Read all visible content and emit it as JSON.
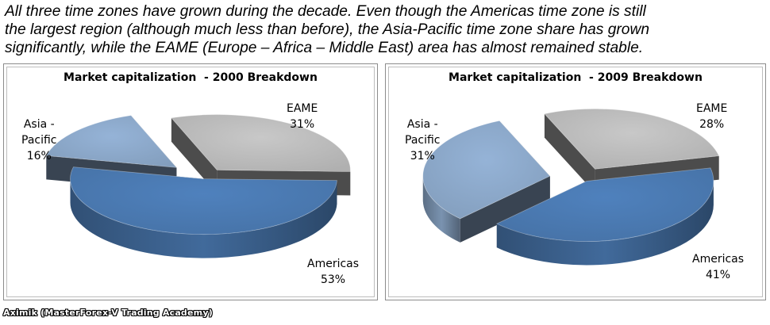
{
  "intro": {
    "line1": "All three time zones have grown during the decade. Even though the Americas time zone is still",
    "line2": "the largest region (although much less than before), the Asia-Pacific time zone share has grown",
    "line3": "significantly, while the EAME (Europe – Africa – Middle East) area has almost remained stable."
  },
  "footer": "Aximik (MasterForex-V Trading Academy)",
  "colors": {
    "eame": "#c8c8c8",
    "americas": "#4f81bd",
    "asia_pacific": "#95b3d7"
  },
  "chart_data": [
    {
      "type": "pie",
      "title": "Market capitalization  - 2000 Breakdown",
      "slices": [
        {
          "label": "EAME",
          "value": 31,
          "display": "31%",
          "color": "#c8c8c8"
        },
        {
          "label": "Americas",
          "value": 53,
          "display": "53%",
          "color": "#4f81bd"
        },
        {
          "label": "Asia - Pacific",
          "label_lines": [
            "Asia -",
            "Pacific"
          ],
          "value": 16,
          "display": "16%",
          "color": "#95b3d7"
        }
      ],
      "exploded": true,
      "style": "3d"
    },
    {
      "type": "pie",
      "title": "Market capitalization  - 2009 Breakdown",
      "slices": [
        {
          "label": "EAME",
          "value": 28,
          "display": "28%",
          "color": "#c8c8c8"
        },
        {
          "label": "Americas",
          "value": 41,
          "display": "41%",
          "color": "#4f81bd"
        },
        {
          "label": "Asia - Pacific",
          "label_lines": [
            "Asia -",
            "Pacific"
          ],
          "value": 31,
          "display": "31%",
          "color": "#95b3d7"
        }
      ],
      "exploded": true,
      "style": "3d"
    }
  ]
}
